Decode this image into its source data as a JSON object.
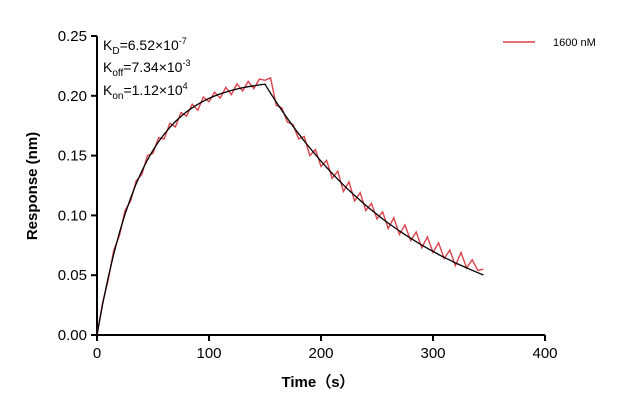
{
  "chart_data": {
    "type": "line",
    "title": "",
    "xlabel": "Time（s）",
    "ylabel": "Response (nm)",
    "xlim": [
      0,
      400
    ],
    "ylim": [
      0,
      0.25
    ],
    "xticks": [
      "0",
      "100",
      "200",
      "300",
      "400"
    ],
    "yticks": [
      "0.00",
      "0.05",
      "0.10",
      "0.15",
      "0.20",
      "0.25"
    ],
    "grid": false,
    "legend_position": "top-right",
    "annotations": {
      "kd": {
        "base": "K",
        "sub": "D",
        "text": "=6.52×10",
        "exp": "-7"
      },
      "koff": {
        "base": "K",
        "sub": "off",
        "text": "=7.34×10",
        "exp": "-3"
      },
      "kon": {
        "base": "K",
        "sub": "on",
        "text": "=1.12×10",
        "exp": "4"
      }
    },
    "series": [
      {
        "name": "1600 nM",
        "color": "#d9434a",
        "x": [
          0,
          5,
          10,
          15,
          20,
          25,
          30,
          35,
          40,
          45,
          50,
          55,
          60,
          65,
          70,
          75,
          80,
          85,
          90,
          95,
          100,
          105,
          110,
          115,
          120,
          125,
          130,
          135,
          140,
          145,
          150,
          155,
          160,
          165,
          170,
          175,
          180,
          185,
          190,
          195,
          200,
          205,
          210,
          215,
          220,
          225,
          230,
          235,
          240,
          245,
          250,
          255,
          260,
          265,
          270,
          275,
          280,
          285,
          290,
          295,
          300,
          305,
          310,
          315,
          320,
          325,
          330,
          335,
          340,
          345
        ],
        "y": [
          0,
          0.027,
          0.046,
          0.071,
          0.083,
          0.104,
          0.112,
          0.129,
          0.134,
          0.15,
          0.152,
          0.165,
          0.164,
          0.177,
          0.174,
          0.186,
          0.183,
          0.193,
          0.188,
          0.199,
          0.195,
          0.203,
          0.198,
          0.207,
          0.201,
          0.21,
          0.204,
          0.212,
          0.206,
          0.214,
          0.213,
          0.215,
          0.192,
          0.19,
          0.178,
          0.176,
          0.164,
          0.166,
          0.15,
          0.155,
          0.141,
          0.146,
          0.131,
          0.137,
          0.12,
          0.128,
          0.112,
          0.119,
          0.104,
          0.11,
          0.097,
          0.103,
          0.089,
          0.098,
          0.084,
          0.092,
          0.079,
          0.086,
          0.073,
          0.082,
          0.069,
          0.077,
          0.064,
          0.071,
          0.058,
          0.069,
          0.056,
          0.063,
          0.054,
          0.055
        ]
      },
      {
        "name": "",
        "color": "#000000",
        "x": [
          0,
          5,
          10,
          15,
          20,
          25,
          30,
          35,
          40,
          45,
          50,
          55,
          60,
          65,
          70,
          75,
          80,
          85,
          90,
          95,
          100,
          105,
          110,
          115,
          120,
          125,
          130,
          135,
          140,
          145,
          150,
          155,
          160,
          165,
          170,
          175,
          180,
          185,
          190,
          195,
          200,
          205,
          210,
          215,
          220,
          225,
          230,
          235,
          240,
          245,
          250,
          255,
          260,
          265,
          270,
          275,
          280,
          285,
          290,
          295,
          300,
          305,
          310,
          315,
          320,
          325,
          330,
          335,
          340,
          345
        ],
        "y": [
          0,
          0.0256,
          0.0481,
          0.068,
          0.0855,
          0.1009,
          0.1145,
          0.1265,
          0.137,
          0.1463,
          0.1545,
          0.1617,
          0.168,
          0.1736,
          0.1785,
          0.1828,
          0.1866,
          0.19,
          0.1929,
          0.1955,
          0.1978,
          0.1998,
          0.2016,
          0.2031,
          0.2045,
          0.2057,
          0.2067,
          0.2076,
          0.2084,
          0.2091,
          0.2097,
          0.2021,
          0.1948,
          0.1878,
          0.1811,
          0.1746,
          0.1683,
          0.1622,
          0.1564,
          0.1508,
          0.1453,
          0.1401,
          0.1351,
          0.1302,
          0.1255,
          0.121,
          0.1167,
          0.1125,
          0.1084,
          0.1045,
          0.1008,
          0.0971,
          0.0936,
          0.0903,
          0.087,
          0.0839,
          0.0809,
          0.078,
          0.0752,
          0.0725,
          0.0699,
          0.0673,
          0.0649,
          0.0626,
          0.0603,
          0.0582,
          0.0561,
          0.0541,
          0.0521,
          0.0502
        ]
      }
    ]
  }
}
